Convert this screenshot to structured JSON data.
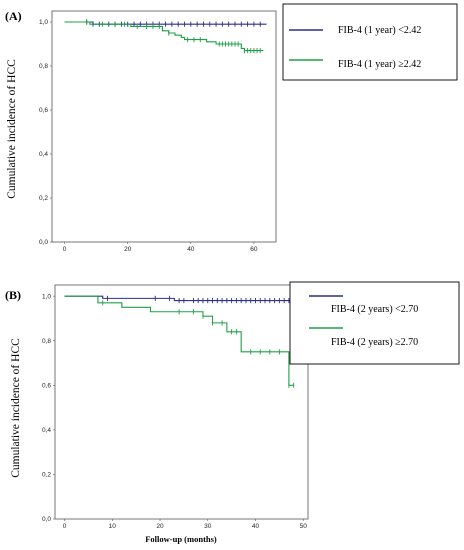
{
  "chart_data": [
    {
      "type": "line",
      "panel_label": "(A)",
      "ylabel": "Cumulative incidence of HCC",
      "xlabel": "",
      "xlim": [
        -4,
        67
      ],
      "ylim": [
        0,
        1.05
      ],
      "x_ticks": [
        0,
        20,
        40,
        60
      ],
      "y_ticks": [
        0.0,
        0.2,
        0.4,
        0.6,
        0.8,
        1.0
      ],
      "y_tick_labels": [
        "0,0",
        "0,2",
        "0,4",
        "0,6",
        "0,8",
        "1,0"
      ],
      "legend_position": "top-right",
      "series": [
        {
          "name": "FIB-4 (1 year) <2.42",
          "color": "#2b2f8f",
          "steps": [
            [
              0,
              1.0
            ],
            [
              9,
              0.99
            ],
            [
              64,
              0.99
            ]
          ],
          "censors": [
            7,
            9,
            11,
            14,
            16,
            18,
            20,
            22,
            24,
            26,
            28,
            30,
            32,
            34,
            36,
            38,
            40,
            42,
            44,
            46,
            48,
            50,
            52,
            54,
            56,
            58,
            60,
            62
          ]
        },
        {
          "name": "FIB-4 (1 year) ≥2.42",
          "color": "#1fa043",
          "steps": [
            [
              0,
              1.0
            ],
            [
              8,
              0.99
            ],
            [
              21,
              0.98
            ],
            [
              31,
              0.96
            ],
            [
              33,
              0.95
            ],
            [
              35,
              0.94
            ],
            [
              37,
              0.93
            ],
            [
              38,
              0.92
            ],
            [
              45,
              0.91
            ],
            [
              48,
              0.9
            ],
            [
              56,
              0.88
            ],
            [
              57,
              0.87
            ],
            [
              63,
              0.87
            ]
          ],
          "censors": [
            7,
            12,
            16,
            19,
            23,
            26,
            28,
            30,
            33,
            39,
            41,
            43,
            49,
            50,
            51,
            52,
            53,
            54,
            55,
            57,
            58,
            59,
            60,
            61,
            62
          ]
        }
      ]
    },
    {
      "type": "line",
      "panel_label": "(B)",
      "ylabel": "Cumulative incidence of HCC",
      "xlabel": "Follow-up (months)",
      "xlim": [
        -2,
        51
      ],
      "ylim": [
        0,
        1.05
      ],
      "x_ticks": [
        0,
        10,
        20,
        30,
        40,
        50
      ],
      "y_ticks": [
        0.0,
        0.2,
        0.4,
        0.6,
        0.8,
        1.0
      ],
      "y_tick_labels": [
        "0,0",
        "0,2",
        "0,4",
        "0,6",
        "0,8",
        "1,0"
      ],
      "legend_position": "top-right",
      "series": [
        {
          "name": "FIB-4 (2 years) <2.70",
          "color": "#2b2f8f",
          "steps": [
            [
              0,
              1.0
            ],
            [
              8,
              0.99
            ],
            [
              23,
              0.98
            ],
            [
              48,
              0.98
            ]
          ],
          "censors": [
            9,
            19,
            22,
            24,
            25,
            27,
            28,
            29,
            30,
            31,
            32,
            33,
            34,
            35,
            36,
            37,
            38,
            39,
            40,
            41,
            42,
            43,
            44,
            45,
            46,
            47,
            48
          ]
        },
        {
          "name": "FIB-4 (2 years) ≥2.70",
          "color": "#1fa043",
          "steps": [
            [
              0,
              1.0
            ],
            [
              7,
              0.97
            ],
            [
              12,
              0.95
            ],
            [
              18,
              0.93
            ],
            [
              29,
              0.91
            ],
            [
              31,
              0.88
            ],
            [
              34,
              0.84
            ],
            [
              37,
              0.75
            ],
            [
              47,
              0.6
            ],
            [
              48,
              0.6
            ]
          ],
          "censors": [
            8,
            24,
            27,
            29,
            31,
            33,
            35,
            36,
            39,
            41,
            43,
            45,
            47,
            48
          ]
        }
      ]
    }
  ]
}
